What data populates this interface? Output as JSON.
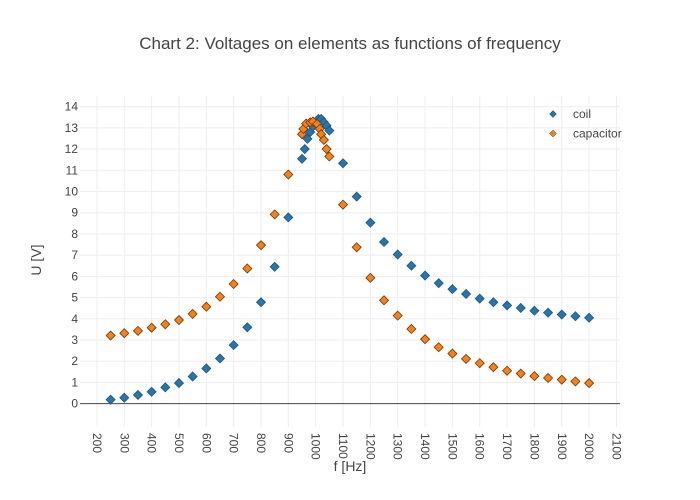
{
  "chart_data": {
    "type": "scatter",
    "title": "Chart 2: Voltages on elements as functions of frequency",
    "xlabel": "f [Hz]",
    "ylabel": "U [V]",
    "xlim": [
      138,
      2113
    ],
    "ylim": [
      -1.1,
      14.5
    ],
    "xticks": [
      200,
      300,
      400,
      500,
      600,
      700,
      800,
      900,
      1000,
      1100,
      1200,
      1300,
      1400,
      1500,
      1600,
      1700,
      1800,
      1900,
      2000,
      2100
    ],
    "yticks": [
      0,
      1,
      2,
      3,
      4,
      5,
      6,
      7,
      8,
      9,
      10,
      11,
      12,
      13,
      14
    ],
    "grid": true,
    "legend_position": "top-right",
    "series": [
      {
        "name": "coil",
        "color": "#1f77b4",
        "marker": "diamond",
        "x": [
          250,
          300,
          350,
          400,
          450,
          500,
          550,
          600,
          650,
          700,
          750,
          800,
          850,
          900,
          950,
          960,
          970,
          980,
          990,
          1010,
          1020,
          1030,
          1040,
          1050,
          1100,
          1150,
          1200,
          1250,
          1300,
          1350,
          1400,
          1450,
          1500,
          1550,
          1600,
          1650,
          1700,
          1750,
          1800,
          1850,
          1900,
          1950,
          2000
        ],
        "y": [
          0.19,
          0.28,
          0.41,
          0.56,
          0.77,
          0.97,
          1.28,
          1.66,
          2.13,
          2.76,
          3.6,
          4.78,
          6.45,
          8.78,
          11.54,
          12.0,
          12.48,
          12.8,
          13.06,
          13.42,
          13.42,
          13.26,
          13.1,
          12.87,
          11.33,
          9.76,
          8.53,
          7.62,
          7.03,
          6.5,
          6.04,
          5.68,
          5.4,
          5.17,
          4.95,
          4.78,
          4.63,
          4.51,
          4.38,
          4.29,
          4.2,
          4.12,
          4.05
        ]
      },
      {
        "name": "capacitor",
        "color": "#ff7f0e",
        "marker": "diamond",
        "x": [
          250,
          300,
          350,
          400,
          450,
          500,
          550,
          600,
          650,
          700,
          750,
          800,
          850,
          900,
          950,
          955,
          965,
          980,
          990,
          1005,
          1015,
          1020,
          1030,
          1040,
          1050,
          1100,
          1150,
          1200,
          1250,
          1300,
          1350,
          1400,
          1450,
          1500,
          1550,
          1600,
          1650,
          1700,
          1750,
          1800,
          1850,
          1900,
          1950,
          2000
        ],
        "y": [
          3.21,
          3.32,
          3.43,
          3.58,
          3.74,
          3.94,
          4.23,
          4.57,
          5.04,
          5.64,
          6.37,
          7.47,
          8.92,
          10.8,
          12.7,
          12.95,
          13.2,
          13.26,
          13.3,
          13.18,
          12.95,
          12.7,
          12.43,
          12.0,
          11.65,
          9.38,
          7.37,
          5.93,
          4.87,
          4.15,
          3.52,
          3.04,
          2.66,
          2.36,
          2.11,
          1.91,
          1.72,
          1.55,
          1.42,
          1.3,
          1.21,
          1.13,
          1.05,
          0.97
        ]
      }
    ]
  }
}
